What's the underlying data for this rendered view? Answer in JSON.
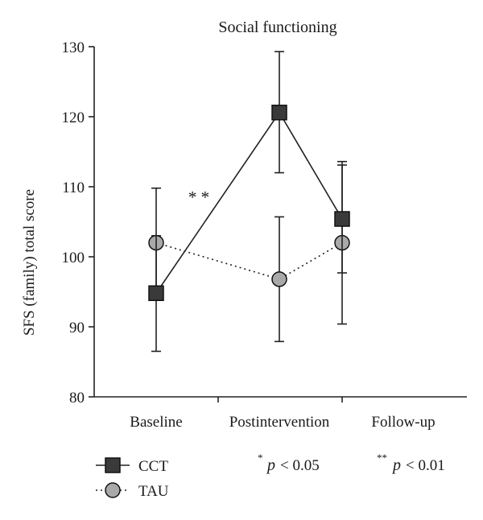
{
  "chart_data": {
    "type": "line",
    "title": "Social functioning",
    "ylabel": "SFS (family) total score",
    "xlabel": "",
    "categories": [
      "Baseline",
      "Postintervention",
      "Follow-up"
    ],
    "ylim": [
      80,
      130
    ],
    "yticks": [
      80,
      90,
      100,
      110,
      120,
      130
    ],
    "grid": false,
    "legend_position": "bottom-left",
    "series": [
      {
        "name": "CCT",
        "marker": "square",
        "line": "solid",
        "color": "#3a3a3a",
        "values": [
          94.8,
          120.6,
          105.4
        ],
        "err_low": [
          86.5,
          112.0,
          97.7
        ],
        "err_high": [
          109.8,
          129.3,
          113.6
        ]
      },
      {
        "name": "TAU",
        "marker": "circle",
        "line": "dotted",
        "color": "#a9a9a9",
        "values": [
          102.0,
          96.8,
          102.0
        ],
        "err_low": [
          94.5,
          87.9,
          90.4
        ],
        "err_high": [
          103.0,
          105.7,
          113.1
        ]
      }
    ],
    "annotations": [
      {
        "text": "**",
        "x_between": [
          "Baseline",
          "Postintervention"
        ],
        "y": 115
      }
    ],
    "significance_legend": [
      {
        "stars": "*",
        "p": "p",
        "text": "< 0.05"
      },
      {
        "stars": "**",
        "p": "p",
        "text": "< 0.01"
      }
    ]
  }
}
